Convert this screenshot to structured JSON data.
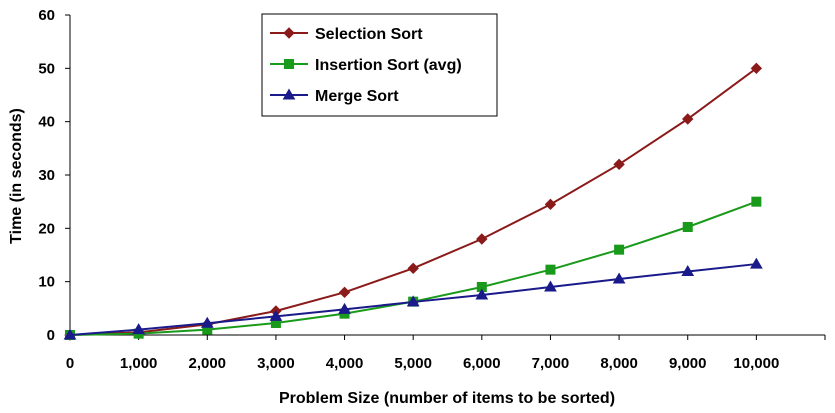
{
  "chart_data": {
    "type": "line",
    "title": "",
    "xlabel": "Problem Size (number of items to be sorted)",
    "ylabel": "Time (in seconds)",
    "x": [
      0,
      1000,
      2000,
      3000,
      4000,
      5000,
      6000,
      7000,
      8000,
      9000,
      10000
    ],
    "x_tick_labels": [
      "0",
      "1,000",
      "2,000",
      "3,000",
      "4,000",
      "5,000",
      "6,000",
      "7,000",
      "8,000",
      "9,000",
      "10,000"
    ],
    "y_ticks": [
      0,
      10,
      20,
      30,
      40,
      50,
      60
    ],
    "xlim": [
      0,
      11000
    ],
    "ylim": [
      0,
      60
    ],
    "grid": false,
    "legend_position": "top-center",
    "series": [
      {
        "name": "Selection Sort",
        "color": "#8B1A1A",
        "marker": "diamond",
        "values": [
          0,
          0.5,
          2,
          4.5,
          8,
          12.5,
          18,
          24.5,
          32,
          40.5,
          50
        ]
      },
      {
        "name": "Insertion Sort (avg)",
        "color": "#1A9A1A",
        "marker": "square",
        "values": [
          0,
          0.25,
          1,
          2.25,
          4,
          6.25,
          9,
          12.25,
          16,
          20.25,
          25
        ]
      },
      {
        "name": "Merge Sort",
        "color": "#1A1A8B",
        "marker": "triangle",
        "values": [
          0,
          1,
          2.2,
          3.5,
          4.8,
          6.2,
          7.5,
          9,
          10.5,
          11.9,
          13.3
        ]
      }
    ]
  }
}
